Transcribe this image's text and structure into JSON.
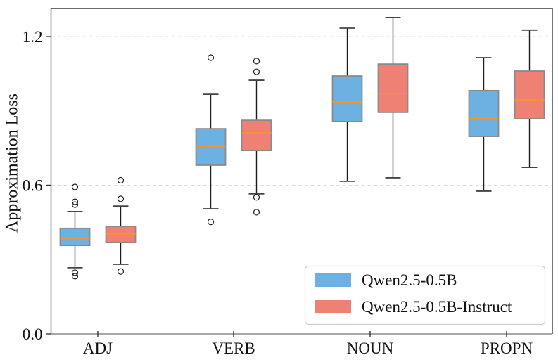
{
  "chart_data": {
    "type": "boxplot",
    "title": "",
    "ylabel": "Approximation Loss",
    "xlabel": "",
    "categories": [
      "ADJ",
      "VERB",
      "NOUN",
      "PROPN"
    ],
    "ytick_labels": [
      "0.0",
      "0.6",
      "1.2"
    ],
    "ytick_values": [
      0.0,
      0.6,
      1.2
    ],
    "ylim": [
      0.0,
      1.313
    ],
    "grid": "horizontal-dashed",
    "legend_position": "lower-right",
    "series": [
      {
        "name": "Qwen2.5-0.5B",
        "color": "#6DB1E2",
        "boxes": [
          {
            "whislo": 0.267,
            "q1": 0.357,
            "med": 0.386,
            "q3": 0.426,
            "whishi": 0.494,
            "fliers": [
              0.233,
              0.247,
              0.522,
              0.533,
              0.593
            ]
          },
          {
            "whislo": 0.505,
            "q1": 0.681,
            "med": 0.757,
            "q3": 0.828,
            "whishi": 0.967,
            "fliers": [
              0.452,
              1.115
            ]
          },
          {
            "whislo": 0.616,
            "q1": 0.857,
            "med": 0.936,
            "q3": 1.041,
            "whishi": 1.234,
            "fliers": []
          },
          {
            "whislo": 0.576,
            "q1": 0.797,
            "med": 0.868,
            "q3": 0.982,
            "whishi": 1.115,
            "fliers": []
          }
        ]
      },
      {
        "name": "Qwen2.5-0.5B-Instruct",
        "color": "#EF8174",
        "boxes": [
          {
            "whislo": 0.281,
            "q1": 0.369,
            "med": 0.403,
            "q3": 0.434,
            "whishi": 0.516,
            "fliers": [
              0.252,
              0.545,
              0.62
            ]
          },
          {
            "whislo": 0.565,
            "q1": 0.74,
            "med": 0.811,
            "q3": 0.862,
            "whishi": 1.024,
            "fliers": [
              0.491,
              0.551,
              1.058,
              1.101
            ]
          },
          {
            "whislo": 0.63,
            "q1": 0.894,
            "med": 0.97,
            "q3": 1.089,
            "whishi": 1.277,
            "fliers": []
          },
          {
            "whislo": 0.672,
            "q1": 0.868,
            "med": 0.945,
            "q3": 1.061,
            "whishi": 1.226,
            "fliers": []
          }
        ]
      }
    ],
    "colors": {
      "blue_box": "#6DB1E2",
      "red_box": "#EF8174",
      "median": "#F8922F",
      "box_edge": "#8A8A8A",
      "whisker": "#1c1c1c",
      "cap": "#444444",
      "grid": "#dcdcdc",
      "spine": "#3a3a3a",
      "bottom_spine": "#8a8a8a",
      "legend_border": "#cccccc"
    }
  }
}
